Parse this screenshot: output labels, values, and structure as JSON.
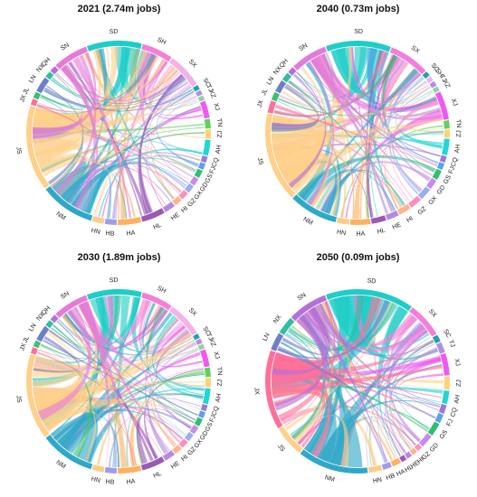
{
  "chart_data": [
    {
      "type": "chord",
      "title": "2021 (2.74m jobs)",
      "segments": [
        {
          "label": "SD",
          "weight": 7,
          "color": "#1fcdc7"
        },
        {
          "label": "SH",
          "weight": 4,
          "color": "#f27fd8"
        },
        {
          "label": "SX",
          "weight": 4.5,
          "color": "#f2b2ea"
        },
        {
          "label": "SC",
          "weight": 0.6,
          "color": "#1fa3a8"
        },
        {
          "label": "TJ",
          "weight": 0.6,
          "color": "#b08fe0"
        },
        {
          "label": "XZ",
          "weight": 0.6,
          "color": "#8fd1a8"
        },
        {
          "label": "XJ",
          "weight": 2.2,
          "color": "#ee5aee"
        },
        {
          "label": "TN",
          "weight": 1.2,
          "color": "#5ed15e"
        },
        {
          "label": "ZJ",
          "weight": 1.2,
          "color": "#ffd27a"
        },
        {
          "label": "AH",
          "weight": 2,
          "color": "#1fd6d6"
        },
        {
          "label": "CQ",
          "weight": 0.8,
          "color": "#9a7ad8"
        },
        {
          "label": "FJ",
          "weight": 0.8,
          "color": "#5aa0ee"
        },
        {
          "label": "GS",
          "weight": 1,
          "color": "#2fbf6f"
        },
        {
          "label": "GD",
          "weight": 1,
          "color": "#c78be8"
        },
        {
          "label": "GX",
          "weight": 1,
          "color": "#9aaef0"
        },
        {
          "label": "GZ",
          "weight": 1,
          "color": "#ff8fb8"
        },
        {
          "label": "HI",
          "weight": 1,
          "color": "#ffb38a"
        },
        {
          "label": "HE",
          "weight": 1.4,
          "color": "#b28be0"
        },
        {
          "label": "HL",
          "weight": 3,
          "color": "#9b59b6"
        },
        {
          "label": "HA",
          "weight": 3,
          "color": "#ffb060"
        },
        {
          "label": "HB",
          "weight": 1.5,
          "color": "#9e9ee8"
        },
        {
          "label": "HN",
          "weight": 1.5,
          "color": "#ffcc88"
        },
        {
          "label": "NM",
          "weight": 7,
          "color": "#2fa8c8"
        },
        {
          "label": "JS",
          "weight": 11,
          "color": "#ffd08a"
        },
        {
          "label": "JX",
          "weight": 0.8,
          "color": "#ff6f9a"
        },
        {
          "label": "JL",
          "weight": 0.8,
          "color": "#3fbf6f"
        },
        {
          "label": "LN",
          "weight": 2,
          "color": "#6e7fc8"
        },
        {
          "label": "NX",
          "weight": 0.8,
          "color": "#2fbf9f"
        },
        {
          "label": "QH",
          "weight": 0.8,
          "color": "#b56fd8"
        },
        {
          "label": "SN",
          "weight": 4.5,
          "color": "#e57ad8"
        }
      ]
    },
    {
      "type": "chord",
      "title": "2040 (0.73m jobs)",
      "segments": [
        {
          "label": "SD",
          "weight": 8,
          "color": "#1fcdc7"
        },
        {
          "label": "SX",
          "weight": 5,
          "color": "#f27fd8"
        },
        {
          "label": "SC",
          "weight": 0.6,
          "color": "#1fa3a8"
        },
        {
          "label": "SH",
          "weight": 0.6,
          "color": "#f2b2ea"
        },
        {
          "label": "TJ",
          "weight": 0.6,
          "color": "#b08fe0"
        },
        {
          "label": "XZ",
          "weight": 0.6,
          "color": "#8fd1a8"
        },
        {
          "label": "XJ",
          "weight": 3.5,
          "color": "#ee5aee"
        },
        {
          "label": "TN",
          "weight": 1,
          "color": "#5ed15e"
        },
        {
          "label": "ZJ",
          "weight": 1,
          "color": "#ffd27a"
        },
        {
          "label": "AH",
          "weight": 2,
          "color": "#1fd6d6"
        },
        {
          "label": "CQ",
          "weight": 0.8,
          "color": "#9a7ad8"
        },
        {
          "label": "FJ",
          "weight": 0.8,
          "color": "#5aa0ee"
        },
        {
          "label": "GS",
          "weight": 1.2,
          "color": "#2fbf6f"
        },
        {
          "label": "GD",
          "weight": 1.2,
          "color": "#c78be8"
        },
        {
          "label": "GX",
          "weight": 1.5,
          "color": "#9aaef0"
        },
        {
          "label": "GZ",
          "weight": 1.5,
          "color": "#ff8fb8"
        },
        {
          "label": "HI",
          "weight": 1.5,
          "color": "#ffb38a"
        },
        {
          "label": "HE",
          "weight": 1.5,
          "color": "#b28be0"
        },
        {
          "label": "HL",
          "weight": 1.8,
          "color": "#9b59b6"
        },
        {
          "label": "HA",
          "weight": 2.5,
          "color": "#ffb060"
        },
        {
          "label": "HN",
          "weight": 1.5,
          "color": "#ffcc88"
        },
        {
          "label": "NM",
          "weight": 6,
          "color": "#2fa8c8"
        },
        {
          "label": "JS",
          "weight": 11,
          "color": "#ffd08a"
        },
        {
          "label": "JX",
          "weight": 1.5,
          "color": "#ff6f9a"
        },
        {
          "label": "JL",
          "weight": 1,
          "color": "#3fbf6f"
        },
        {
          "label": "LN",
          "weight": 1.5,
          "color": "#6e7fc8"
        },
        {
          "label": "NX",
          "weight": 1,
          "color": "#2fbf9f"
        },
        {
          "label": "QH",
          "weight": 0.8,
          "color": "#b56fd8"
        },
        {
          "label": "SN",
          "weight": 4.5,
          "color": "#e57ad8"
        }
      ]
    },
    {
      "type": "chord",
      "title": "2030 (1.89m jobs)",
      "segments": [
        {
          "label": "SD",
          "weight": 7,
          "color": "#1fcdc7"
        },
        {
          "label": "SH",
          "weight": 4,
          "color": "#f27fd8"
        },
        {
          "label": "SX",
          "weight": 4.5,
          "color": "#f2b2ea"
        },
        {
          "label": "SC",
          "weight": 0.6,
          "color": "#1fa3a8"
        },
        {
          "label": "TJ",
          "weight": 0.6,
          "color": "#b08fe0"
        },
        {
          "label": "XZ",
          "weight": 0.6,
          "color": "#8fd1a8"
        },
        {
          "label": "XJ",
          "weight": 2.2,
          "color": "#ee5aee"
        },
        {
          "label": "TN",
          "weight": 1.2,
          "color": "#5ed15e"
        },
        {
          "label": "ZJ",
          "weight": 1.2,
          "color": "#ffd27a"
        },
        {
          "label": "AH",
          "weight": 2,
          "color": "#1fd6d6"
        },
        {
          "label": "CQ",
          "weight": 0.8,
          "color": "#9a7ad8"
        },
        {
          "label": "FJ",
          "weight": 0.8,
          "color": "#5aa0ee"
        },
        {
          "label": "GS",
          "weight": 1,
          "color": "#2fbf6f"
        },
        {
          "label": "GD",
          "weight": 1,
          "color": "#c78be8"
        },
        {
          "label": "GX",
          "weight": 1,
          "color": "#9aaef0"
        },
        {
          "label": "GZ",
          "weight": 1,
          "color": "#ff8fb8"
        },
        {
          "label": "HI",
          "weight": 1,
          "color": "#ffb38a"
        },
        {
          "label": "HE",
          "weight": 1.4,
          "color": "#b28be0"
        },
        {
          "label": "HL",
          "weight": 3,
          "color": "#9b59b6"
        },
        {
          "label": "HA",
          "weight": 3,
          "color": "#ffb060"
        },
        {
          "label": "HB",
          "weight": 1.5,
          "color": "#9e9ee8"
        },
        {
          "label": "HN",
          "weight": 1.5,
          "color": "#ffcc88"
        },
        {
          "label": "NM",
          "weight": 7,
          "color": "#2fa8c8"
        },
        {
          "label": "JS",
          "weight": 11,
          "color": "#ffd08a"
        },
        {
          "label": "JX",
          "weight": 0.8,
          "color": "#ff6f9a"
        },
        {
          "label": "JL",
          "weight": 0.8,
          "color": "#3fbf6f"
        },
        {
          "label": "LN",
          "weight": 2,
          "color": "#6e7fc8"
        },
        {
          "label": "NX",
          "weight": 0.8,
          "color": "#2fbf9f"
        },
        {
          "label": "QH",
          "weight": 0.8,
          "color": "#b56fd8"
        },
        {
          "label": "SN",
          "weight": 4.5,
          "color": "#e57ad8"
        }
      ]
    },
    {
      "type": "chord",
      "title": "2050 (0.09m jobs)",
      "segments": [
        {
          "label": "SD",
          "weight": 10,
          "color": "#1fcdc7"
        },
        {
          "label": "SX",
          "weight": 4,
          "color": "#f27fd8"
        },
        {
          "label": "SC",
          "weight": 0.8,
          "color": "#1fa3a8"
        },
        {
          "label": "TJ",
          "weight": 1.2,
          "color": "#b08fe0"
        },
        {
          "label": "XJ",
          "weight": 2.5,
          "color": "#ee5aee"
        },
        {
          "label": "ZJ",
          "weight": 1.5,
          "color": "#ffd27a"
        },
        {
          "label": "AH",
          "weight": 1.5,
          "color": "#1fd6d6"
        },
        {
          "label": "CQ",
          "weight": 1,
          "color": "#9a7ad8"
        },
        {
          "label": "FJ",
          "weight": 1,
          "color": "#5aa0ee"
        },
        {
          "label": "GS",
          "weight": 1.5,
          "color": "#2fbf6f"
        },
        {
          "label": "GD",
          "weight": 1.5,
          "color": "#c78be8"
        },
        {
          "label": "GZ",
          "weight": 0.6,
          "color": "#ff8fb8"
        },
        {
          "label": "HI",
          "weight": 0.6,
          "color": "#ffb38a"
        },
        {
          "label": "HE",
          "weight": 0.6,
          "color": "#b28be0"
        },
        {
          "label": "HL",
          "weight": 0.6,
          "color": "#9b59b6"
        },
        {
          "label": "HA",
          "weight": 1,
          "color": "#ffb060"
        },
        {
          "label": "HB",
          "weight": 1,
          "color": "#9e9ee8"
        },
        {
          "label": "HN",
          "weight": 1.5,
          "color": "#ffcc88"
        },
        {
          "label": "NM",
          "weight": 8,
          "color": "#2fa8c8"
        },
        {
          "label": "JS",
          "weight": 3.5,
          "color": "#ffd08a"
        },
        {
          "label": "JX",
          "weight": 9,
          "color": "#ff6f9a"
        },
        {
          "label": "LN",
          "weight": 2,
          "color": "#6e7fc8"
        },
        {
          "label": "NX",
          "weight": 2,
          "color": "#2fbf9f"
        },
        {
          "label": "SN",
          "weight": 4.5,
          "color": "#b56fd8"
        }
      ]
    }
  ]
}
